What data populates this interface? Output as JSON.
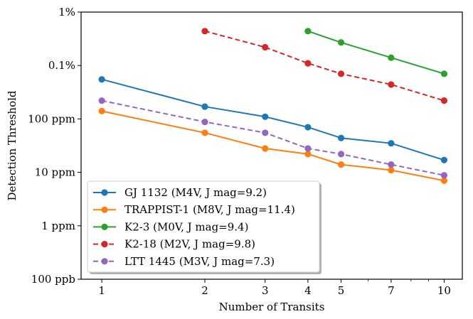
{
  "chart_data": {
    "type": "line",
    "title": "",
    "xlabel": "Number of Transits",
    "ylabel": "Detection Threshold",
    "xscale": "log",
    "yscale": "log",
    "xlim": [
      0.87,
      11.3
    ],
    "ylim": [
      1e-07,
      0.01
    ],
    "grid": false,
    "legend_location": "lower-left",
    "x_ticks": [
      {
        "value": 1,
        "label": "1"
      },
      {
        "value": 2,
        "label": "2"
      },
      {
        "value": 3,
        "label": "3"
      },
      {
        "value": 4,
        "label": "4"
      },
      {
        "value": 5,
        "label": "5"
      },
      {
        "value": 7,
        "label": "7"
      },
      {
        "value": 10,
        "label": "10"
      }
    ],
    "y_ticks": [
      {
        "value": 1e-07,
        "label": "100 ppb"
      },
      {
        "value": 1e-06,
        "label": "1 ppm"
      },
      {
        "value": 1e-05,
        "label": "10 ppm"
      },
      {
        "value": 0.0001,
        "label": "100 ppm"
      },
      {
        "value": 0.001,
        "label": "0.1%"
      },
      {
        "value": 0.01,
        "label": "1%"
      }
    ],
    "series": [
      {
        "name": "GJ 1132 (M4V, J mag=9.2)",
        "color": "#1f77b4",
        "linestyle": "solid",
        "x": [
          1,
          2,
          3,
          4,
          5,
          7,
          10
        ],
        "values": [
          0.00055,
          0.00017,
          0.00011,
          7e-05,
          4.4e-05,
          3.5e-05,
          1.7e-05
        ]
      },
      {
        "name": "TRAPPIST-1 (M8V, J mag=11.4)",
        "color": "#ff7f0e",
        "linestyle": "solid",
        "x": [
          1,
          2,
          3,
          4,
          5,
          7,
          10
        ],
        "values": [
          0.00014,
          5.5e-05,
          2.8e-05,
          2.2e-05,
          1.4e-05,
          1.1e-05,
          7e-06
        ]
      },
      {
        "name": "K2-3 (M0V, J mag=9.4)",
        "color": "#2ca02c",
        "linestyle": "solid",
        "x": [
          4,
          5,
          7,
          10
        ],
        "values": [
          0.0044,
          0.0027,
          0.0014,
          0.0007
        ]
      },
      {
        "name": "K2-18 (M2V, J mag=9.8)",
        "color": "#d62728",
        "linestyle": "dashed",
        "x": [
          2,
          3,
          4,
          5,
          7,
          10
        ],
        "values": [
          0.0044,
          0.0022,
          0.0011,
          0.0007,
          0.00044,
          0.00022
        ]
      },
      {
        "name": "LTT 1445 (M3V, J mag=7.3)",
        "color": "#9467bd",
        "linestyle": "dashed",
        "x": [
          1,
          2,
          3,
          4,
          5,
          7,
          10
        ],
        "values": [
          0.00022,
          8.8e-05,
          5.5e-05,
          2.8e-05,
          2.2e-05,
          1.4e-05,
          8.8e-06
        ]
      }
    ]
  }
}
